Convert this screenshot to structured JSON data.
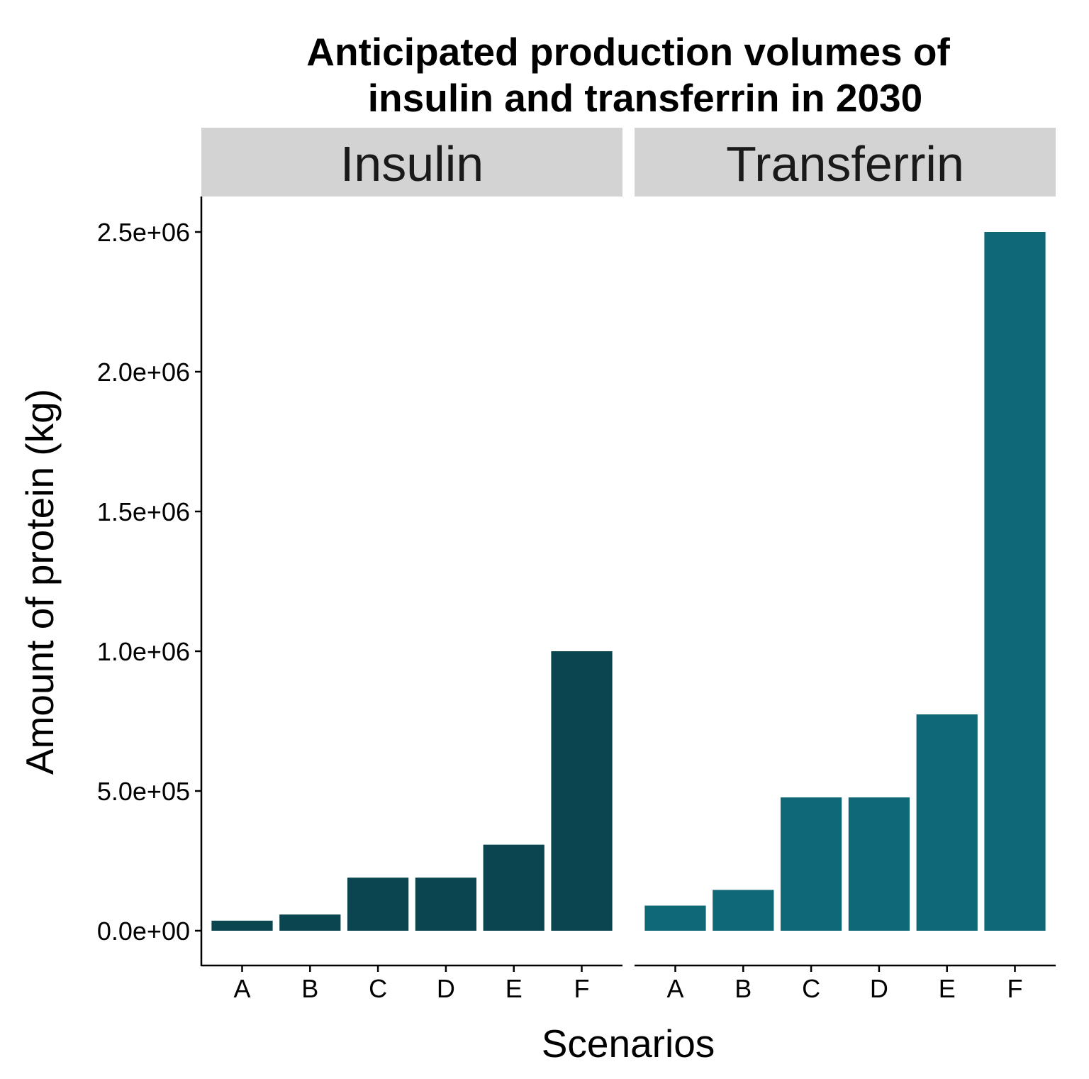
{
  "chart_data": {
    "type": "bar",
    "title": "Anticipated production volumes of\ninsulin and transferrin in 2030",
    "title_lines": [
      "Anticipated production volumes of",
      "insulin and transferrin in 2030"
    ],
    "xlabel": "Scenarios",
    "ylabel": "Amount of protein (kg)",
    "ylim": [
      0,
      2500000
    ],
    "yticks": [
      0,
      500000,
      1000000,
      1500000,
      2000000,
      2500000
    ],
    "ytick_labels": [
      "0.0e+00",
      "5.0e+05",
      "1.0e+06",
      "1.5e+06",
      "2.0e+06",
      "2.5e+06"
    ],
    "categories": [
      "A",
      "B",
      "C",
      "D",
      "E",
      "F"
    ],
    "grid": false,
    "facets": [
      {
        "name": "Insulin",
        "color": "#0b4650",
        "values": [
          36000,
          58000,
          190000,
          190000,
          308000,
          1000000
        ]
      },
      {
        "name": "Transferrin",
        "color": "#0e6876",
        "values": [
          90000,
          146000,
          477000,
          477000,
          774000,
          2500000
        ]
      }
    ]
  }
}
